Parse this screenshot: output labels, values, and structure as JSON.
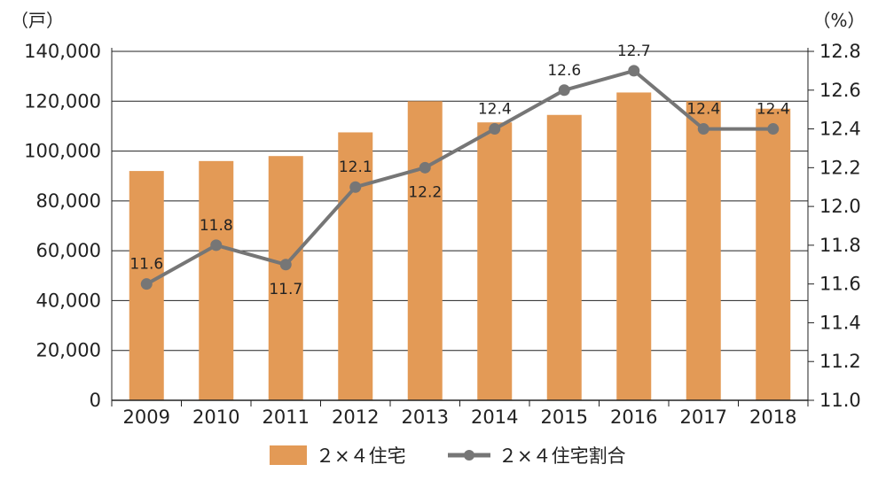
{
  "chart_data": {
    "type": "bar+line",
    "categories": [
      "2009",
      "2010",
      "2011",
      "2012",
      "2013",
      "2014",
      "2015",
      "2016",
      "2017",
      "2018"
    ],
    "series": [
      {
        "name": "２×４住宅",
        "type": "bar",
        "axis": "left",
        "values": [
          92000,
          96000,
          98000,
          107500,
          120000,
          111500,
          114500,
          123500,
          120000,
          117000
        ]
      },
      {
        "name": "２×４住宅割合",
        "type": "line",
        "axis": "right",
        "values": [
          11.6,
          11.8,
          11.7,
          12.1,
          12.2,
          12.4,
          12.6,
          12.7,
          12.4,
          12.4
        ],
        "labels": [
          "11.6",
          "11.8",
          "11.7",
          "12.1",
          "12.2",
          "12.4",
          "12.6",
          "12.7",
          "12.4",
          "12.4"
        ]
      }
    ],
    "y_left": {
      "unit": "（戸）",
      "ylim": [
        0,
        140000
      ],
      "ticks": [
        0,
        20000,
        40000,
        60000,
        80000,
        100000,
        120000,
        140000
      ],
      "tick_labels": [
        "0",
        "20,000",
        "40,000",
        "60,000",
        "80,000",
        "100,000",
        "120,000",
        "140,000"
      ]
    },
    "y_right": {
      "unit": "（%）",
      "ylim": [
        11.0,
        12.8
      ],
      "ticks": [
        11.0,
        11.2,
        11.4,
        11.6,
        11.8,
        12.0,
        12.2,
        12.4,
        12.6,
        12.8
      ],
      "tick_labels": [
        "11.0",
        "11.2",
        "11.4",
        "11.6",
        "11.8",
        "12.0",
        "12.2",
        "12.4",
        "12.6",
        "12.8"
      ]
    },
    "grid": true,
    "legend": "bottom",
    "colors": {
      "bar": "#e39a56",
      "line": "#767676",
      "grid": "#222222"
    }
  }
}
